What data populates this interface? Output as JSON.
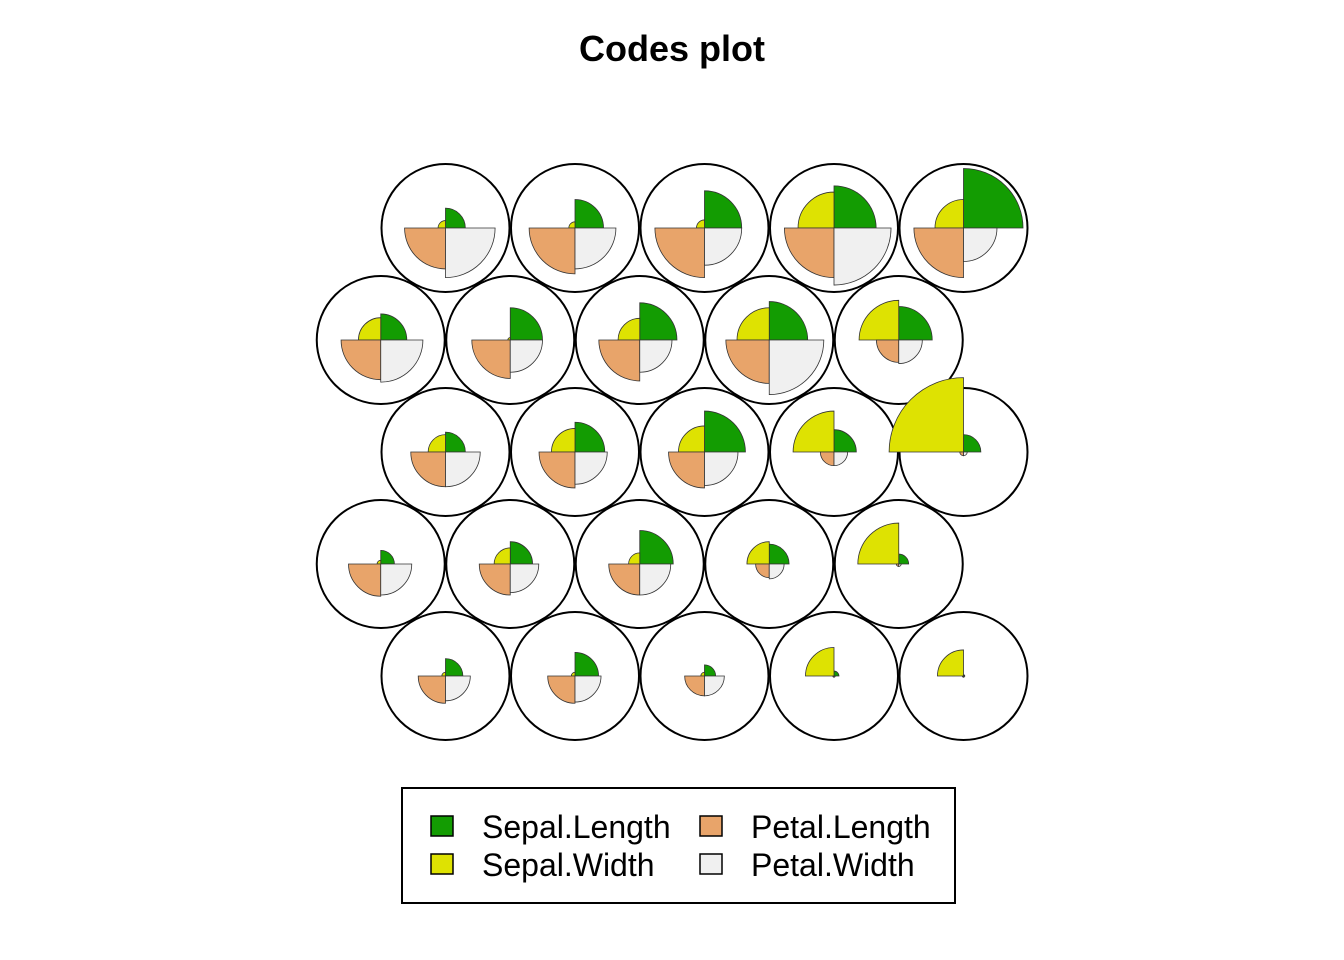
{
  "chart_data": {
    "type": "som-codes",
    "title": "Codes plot",
    "grid": {
      "rows": 5,
      "cols": 5,
      "topology": "hexagonal"
    },
    "variables": [
      "Sepal.Length",
      "Sepal.Width",
      "Petal.Length",
      "Petal.Width"
    ],
    "colors": {
      "Sepal.Length": "#139c02",
      "Sepal.Width": "#dee202",
      "Petal.Length": "#e8a46a",
      "Petal.Width": "#f0f0f0"
    },
    "units": [
      [
        0.32,
        0.12,
        0.66,
        0.8
      ],
      [
        0.46,
        0.1,
        0.74,
        0.66
      ],
      [
        0.6,
        0.13,
        0.8,
        0.6
      ],
      [
        0.68,
        0.58,
        0.8,
        0.92
      ],
      [
        0.96,
        0.46,
        0.8,
        0.54
      ],
      [
        0.42,
        0.36,
        0.64,
        0.68
      ],
      [
        0.52,
        0.04,
        0.62,
        0.52
      ],
      [
        0.6,
        0.35,
        0.66,
        0.52
      ],
      [
        0.62,
        0.52,
        0.7,
        0.88
      ],
      [
        0.54,
        0.64,
        0.36,
        0.38
      ],
      [
        0.32,
        0.28,
        0.56,
        0.56
      ],
      [
        0.48,
        0.38,
        0.58,
        0.52
      ],
      [
        0.66,
        0.42,
        0.58,
        0.54
      ],
      [
        0.36,
        0.66,
        0.22,
        0.22
      ],
      [
        0.28,
        1.2,
        0.06,
        0.06
      ],
      [
        0.22,
        0.06,
        0.52,
        0.5
      ],
      [
        0.36,
        0.26,
        0.5,
        0.46
      ],
      [
        0.54,
        0.18,
        0.5,
        0.5
      ],
      [
        0.32,
        0.36,
        0.22,
        0.24
      ],
      [
        0.16,
        0.66,
        0.04,
        0.04
      ],
      [
        0.28,
        0.06,
        0.44,
        0.4
      ],
      [
        0.38,
        0.06,
        0.44,
        0.42
      ],
      [
        0.18,
        0.06,
        0.32,
        0.32
      ],
      [
        0.08,
        0.46,
        0.02,
        0.02
      ],
      [
        0.02,
        0.42,
        0.02,
        0.02
      ]
    ]
  }
}
